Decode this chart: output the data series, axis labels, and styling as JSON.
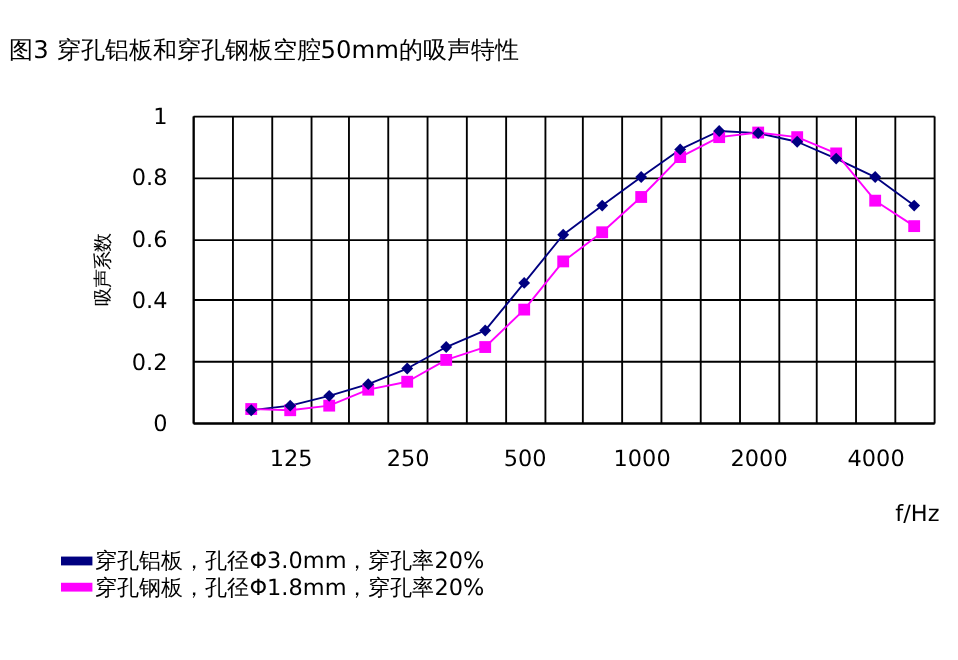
{
  "chart_data": {
    "type": "line",
    "title": "图3  穿孔铝板和穿孔钢板空腔50mm的吸声特性",
    "xlabel": "f/Hz",
    "ylabel": "吸声系数",
    "categories": [
      null,
      null,
      "125",
      null,
      null,
      "250",
      null,
      null,
      "500",
      null,
      null,
      "1000",
      null,
      null,
      "2000",
      null,
      null,
      "4000",
      null
    ],
    "series": [
      {
        "name": "穿孔铝板，孔径Φ3.0mm，穿孔率20%",
        "color": "#000080",
        "marker": "diamond",
        "values": [
          null,
          0.04,
          0.055,
          0.087,
          0.125,
          0.176,
          0.246,
          0.3,
          0.455,
          0.612,
          0.707,
          0.8,
          0.89,
          0.95,
          0.943,
          0.915,
          0.86,
          0.8,
          0.707
        ]
      },
      {
        "name": "穿孔钢板，孔径Φ1.8mm，穿孔率20%",
        "color": "#ff00ff",
        "marker": "square",
        "values": [
          null,
          0.044,
          0.04,
          0.055,
          0.107,
          0.133,
          0.204,
          0.246,
          0.368,
          0.525,
          0.62,
          0.735,
          0.865,
          0.93,
          0.945,
          0.93,
          0.877,
          0.723,
          0.64
        ]
      }
    ],
    "ylim": [
      0,
      1
    ],
    "yticks": [
      0,
      0.2,
      0.4,
      0.6,
      0.8,
      1
    ],
    "grid": true,
    "legend": "bottom left",
    "line_style": "solid"
  }
}
